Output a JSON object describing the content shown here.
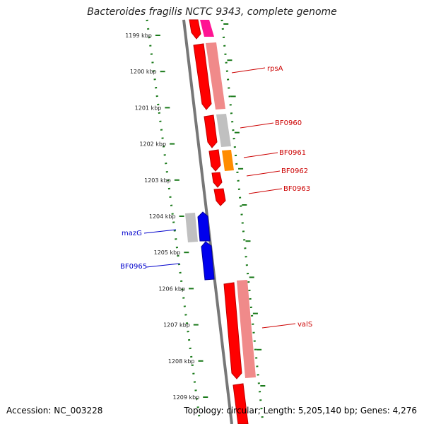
{
  "title": "Bacteroides fragilis NCTC 9343, complete genome",
  "footer": {
    "accession": "Accession: NC_003228",
    "summary": "Topology: circular; Length: 5,205,140 bp; Genes: 4,276"
  },
  "ticks": [
    "1199 kbp",
    "1200 kbp",
    "1201 kbp",
    "1202 kbp",
    "1203 kbp",
    "1204 kbp",
    "1205 kbp",
    "1206 kbp",
    "1207 kbp",
    "1208 kbp",
    "1209 kbp"
  ],
  "colors": {
    "backbone": "#777777",
    "tick_dots": "#1a7a1a",
    "red_gene": "#ff0000",
    "pink_gene": "#f08a8a",
    "magenta_gene": "#ff1493",
    "grey_gene": "#c0c0c0",
    "orange_gene": "#ff8c00",
    "blue_gene": "#0000ee",
    "label_red": "#cc0000",
    "label_blue": "#0000cc"
  },
  "gene_labels": [
    {
      "text": "rpsA",
      "color": "red"
    },
    {
      "text": "BF0960",
      "color": "red"
    },
    {
      "text": "BF0961",
      "color": "red"
    },
    {
      "text": "BF0962",
      "color": "red"
    },
    {
      "text": "BF0963",
      "color": "red"
    },
    {
      "text": "mazG",
      "color": "blue"
    },
    {
      "text": "BF0965",
      "color": "blue"
    },
    {
      "text": "valS",
      "color": "red"
    }
  ]
}
